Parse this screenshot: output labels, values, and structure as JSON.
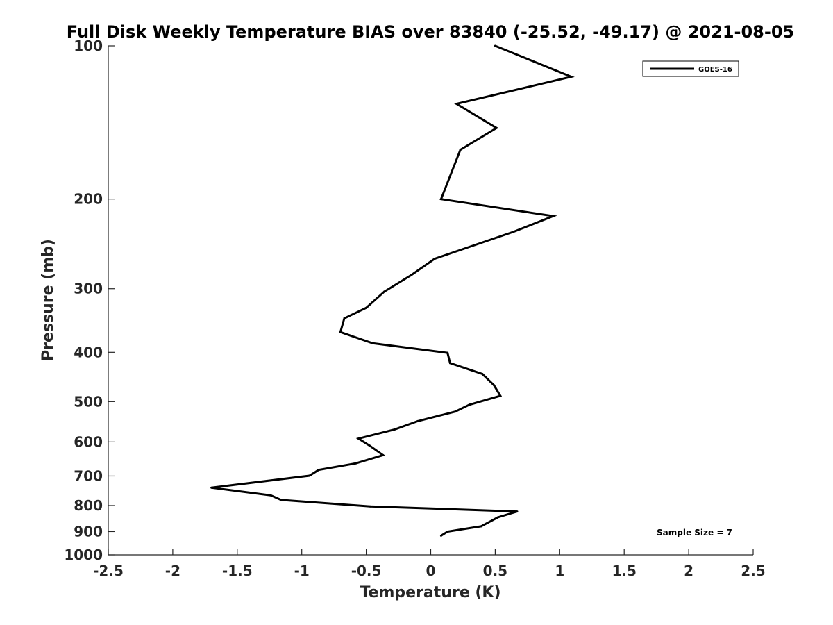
{
  "chart_data": {
    "type": "line",
    "title": "Full Disk Weekly Temperature BIAS over 83840 (-25.52, -49.17) @ 2021-08-05",
    "xlabel": "Temperature (K)",
    "ylabel": "Pressure (mb)",
    "xlim": [
      -2.5,
      2.5
    ],
    "ylim": [
      1000,
      100
    ],
    "y_scale": "log",
    "y_reversed": true,
    "x_ticks": [
      "-2.5",
      "-2",
      "-1.5",
      "-1",
      "-0.5",
      "0",
      "0.5",
      "1",
      "1.5",
      "2",
      "2.5"
    ],
    "y_ticks": [
      "100",
      "200",
      "300",
      "400",
      "500",
      "600",
      "700",
      "800",
      "900",
      "1000"
    ],
    "grid": false,
    "legend_position": "top-right",
    "annotation": "Sample Size = 7",
    "series": [
      {
        "name": "GOES-16",
        "color": "#000000",
        "points": [
          {
            "x": 0.5,
            "y": 100
          },
          {
            "x": 1.09,
            "y": 115
          },
          {
            "x": 0.2,
            "y": 130
          },
          {
            "x": 0.51,
            "y": 145
          },
          {
            "x": 0.23,
            "y": 160
          },
          {
            "x": 0.08,
            "y": 200
          },
          {
            "x": 0.95,
            "y": 216
          },
          {
            "x": 0.64,
            "y": 232
          },
          {
            "x": 0.03,
            "y": 262
          },
          {
            "x": -0.15,
            "y": 282
          },
          {
            "x": -0.36,
            "y": 304
          },
          {
            "x": -0.5,
            "y": 327
          },
          {
            "x": -0.67,
            "y": 343
          },
          {
            "x": -0.7,
            "y": 365
          },
          {
            "x": -0.45,
            "y": 384
          },
          {
            "x": 0.13,
            "y": 401
          },
          {
            "x": 0.15,
            "y": 420
          },
          {
            "x": 0.4,
            "y": 441
          },
          {
            "x": 0.49,
            "y": 464
          },
          {
            "x": 0.54,
            "y": 487
          },
          {
            "x": 0.3,
            "y": 507
          },
          {
            "x": 0.19,
            "y": 523
          },
          {
            "x": -0.1,
            "y": 546
          },
          {
            "x": -0.28,
            "y": 567
          },
          {
            "x": -0.56,
            "y": 591
          },
          {
            "x": -0.47,
            "y": 611
          },
          {
            "x": -0.37,
            "y": 637
          },
          {
            "x": -0.58,
            "y": 661
          },
          {
            "x": -0.87,
            "y": 681
          },
          {
            "x": -0.94,
            "y": 699
          },
          {
            "x": -1.7,
            "y": 738
          },
          {
            "x": -1.24,
            "y": 764
          },
          {
            "x": -1.16,
            "y": 780
          },
          {
            "x": -0.47,
            "y": 803
          },
          {
            "x": 0.67,
            "y": 822
          },
          {
            "x": 0.52,
            "y": 844
          },
          {
            "x": 0.39,
            "y": 879
          },
          {
            "x": 0.13,
            "y": 900
          },
          {
            "x": 0.08,
            "y": 917
          }
        ]
      }
    ]
  }
}
